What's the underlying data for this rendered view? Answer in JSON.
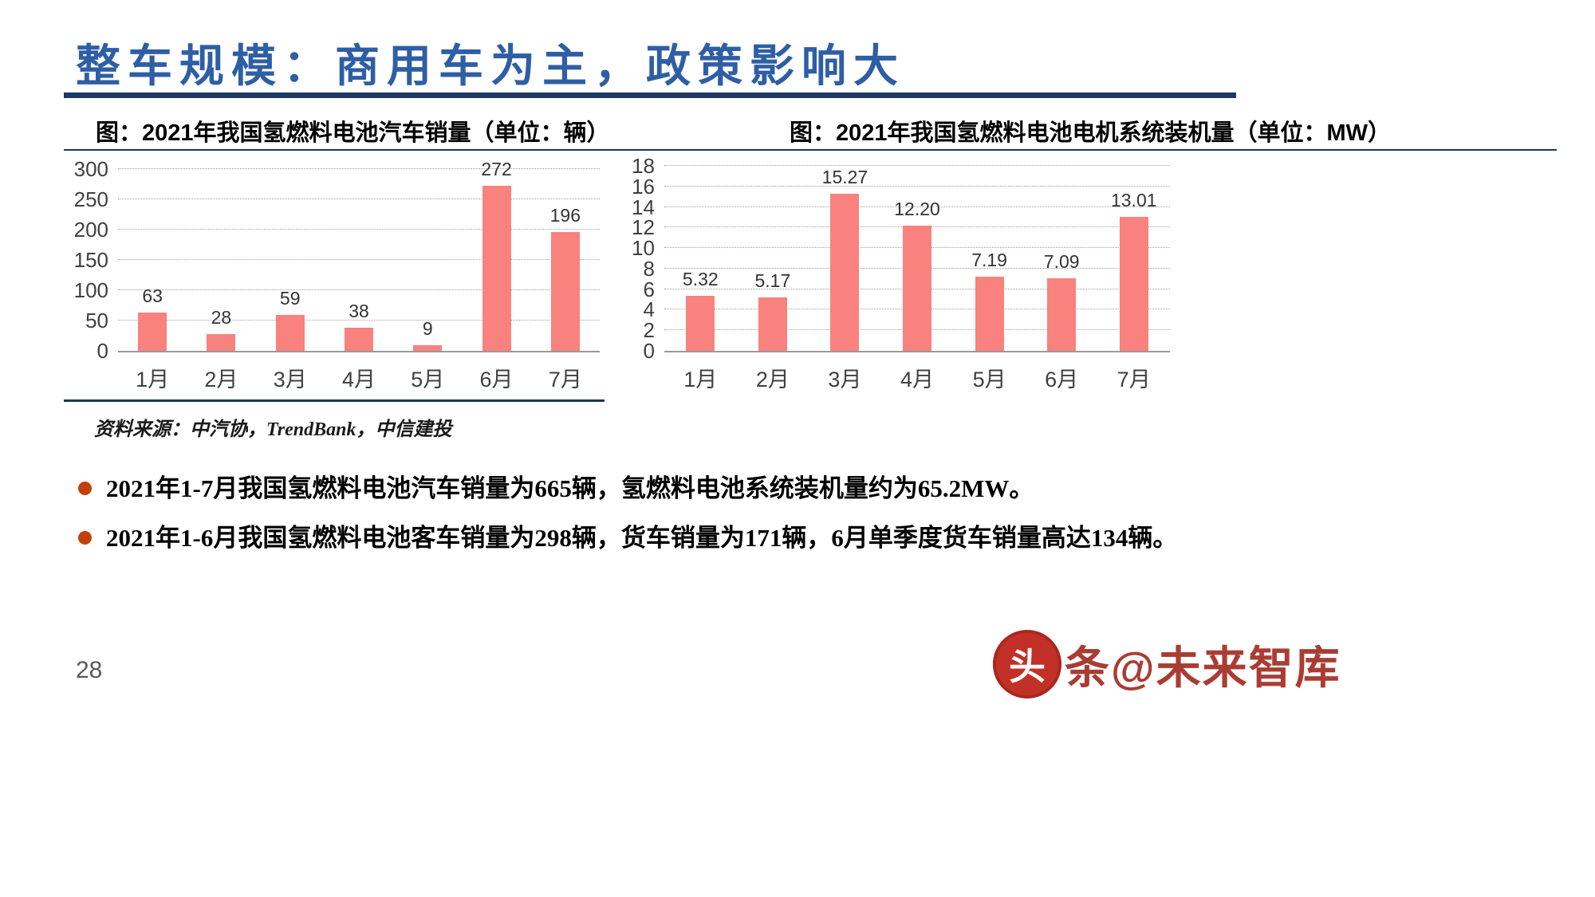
{
  "header": {
    "title": "整车规模：商用车为主，政策影响大"
  },
  "source": "资料来源：中汽协，TrendBank，中信建投",
  "bullets": [
    "2021年1-7月我国氢燃料电池汽车销量为665辆，氢燃料电池系统装机量约为65.2MW。",
    "2021年1-6月我国氢燃料电池客车销量为298辆，货车销量为171辆，6月单季度货车销量高达134辆。"
  ],
  "footer": {
    "page_number": "28",
    "watermark_seal": "头",
    "watermark_text": "条@未来智库"
  },
  "colors": {
    "bar": "#F9817E",
    "title_blue": "#2E5EA5",
    "rule_navy": "#203864",
    "bullet_dot": "#C2400C"
  },
  "chart_data": [
    {
      "type": "bar",
      "title": "图：2021年我国氢燃料电池汽车销量（单位：辆）",
      "categories": [
        "1月",
        "2月",
        "3月",
        "4月",
        "5月",
        "6月",
        "7月"
      ],
      "values": [
        63,
        28,
        59,
        38,
        9,
        272,
        196
      ],
      "value_labels": [
        "63",
        "28",
        "59",
        "38",
        "9",
        "272",
        "196"
      ],
      "xlabel": "",
      "ylabel": "",
      "ylim": [
        0,
        300
      ],
      "yticks": [
        0,
        50,
        100,
        150,
        200,
        250,
        300
      ],
      "grid": "horizontal-dotted",
      "legend": "none"
    },
    {
      "type": "bar",
      "title": "图：2021年我国氢燃料电池电机系统装机量（单位：MW）",
      "categories": [
        "1月",
        "2月",
        "3月",
        "4月",
        "5月",
        "6月",
        "7月"
      ],
      "values": [
        5.32,
        5.17,
        15.27,
        12.2,
        7.19,
        7.09,
        13.01
      ],
      "value_labels": [
        "5.32",
        "5.17",
        "15.27",
        "12.20",
        "7.19",
        "7.09",
        "13.01"
      ],
      "xlabel": "",
      "ylabel": "",
      "ylim": [
        0,
        18
      ],
      "yticks": [
        0,
        2,
        4,
        6,
        8,
        10,
        12,
        14,
        16,
        18
      ],
      "grid": "horizontal-dotted",
      "legend": "none"
    }
  ]
}
